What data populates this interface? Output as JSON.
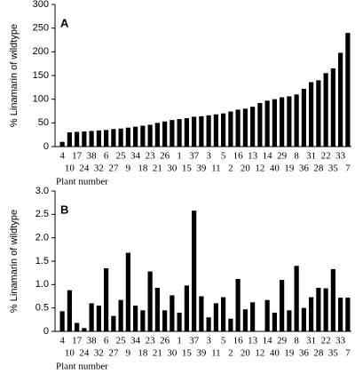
{
  "chart_data": [
    {
      "type": "bar",
      "title": "A",
      "y_label": "% Linamarin of wildtype",
      "x_label": "Plant number",
      "categories": [
        "4",
        "10",
        "17",
        "24",
        "38",
        "32",
        "6",
        "27",
        "25",
        "9",
        "34",
        "18",
        "23",
        "21",
        "26",
        "30",
        "1",
        "15",
        "37",
        "39",
        "3",
        "11",
        "5",
        "2",
        "16",
        "20",
        "13",
        "12",
        "14",
        "40",
        "29",
        "19",
        "8",
        "36",
        "31",
        "28",
        "22",
        "35",
        "33",
        "7"
      ],
      "values": [
        10,
        30,
        31,
        32,
        33,
        34,
        35,
        37,
        38,
        40,
        42,
        44,
        46,
        50,
        53,
        56,
        58,
        60,
        63,
        64,
        66,
        68,
        70,
        74,
        78,
        80,
        84,
        92,
        97,
        100,
        104,
        106,
        110,
        122,
        136,
        140,
        155,
        165,
        198,
        240
      ],
      "color": "#000000",
      "ylim": [
        0,
        300
      ],
      "yticks": [
        0,
        50,
        100,
        150,
        200,
        250,
        300
      ]
    },
    {
      "type": "bar",
      "title": "B",
      "y_label": "% Linamarin of wildtype",
      "x_label": "Plant number",
      "categories": [
        "4",
        "10",
        "17",
        "24",
        "38",
        "32",
        "6",
        "27",
        "25",
        "9",
        "34",
        "18",
        "23",
        "21",
        "26",
        "30",
        "1",
        "15",
        "37",
        "39",
        "3",
        "11",
        "5",
        "2",
        "16",
        "20",
        "13",
        "12",
        "14",
        "40",
        "29",
        "19",
        "8",
        "36",
        "31",
        "28",
        "22",
        "35",
        "33",
        "7"
      ],
      "values": [
        0.43,
        0.88,
        0.18,
        0.07,
        0.6,
        0.55,
        1.35,
        0.33,
        0.67,
        1.68,
        0.55,
        0.45,
        1.28,
        0.93,
        0.45,
        0.77,
        0.4,
        0.98,
        2.58,
        0.75,
        0.3,
        0.6,
        0.73,
        0.27,
        1.12,
        0.47,
        0.62,
        0,
        0.67,
        0.4,
        1.1,
        0.45,
        1.4,
        0.5,
        0.73,
        0.93,
        0.92,
        1.33,
        0.72,
        0.72
      ],
      "color": "#000000",
      "ylim": [
        0,
        3
      ],
      "yticks": [
        0,
        0.5,
        {
          "value": 1,
          "label": "1.0"
        },
        1.5,
        {
          "value": 2,
          "label": "2.0"
        },
        2.5,
        {
          "value": 3,
          "label": "3.0"
        }
      ]
    }
  ]
}
